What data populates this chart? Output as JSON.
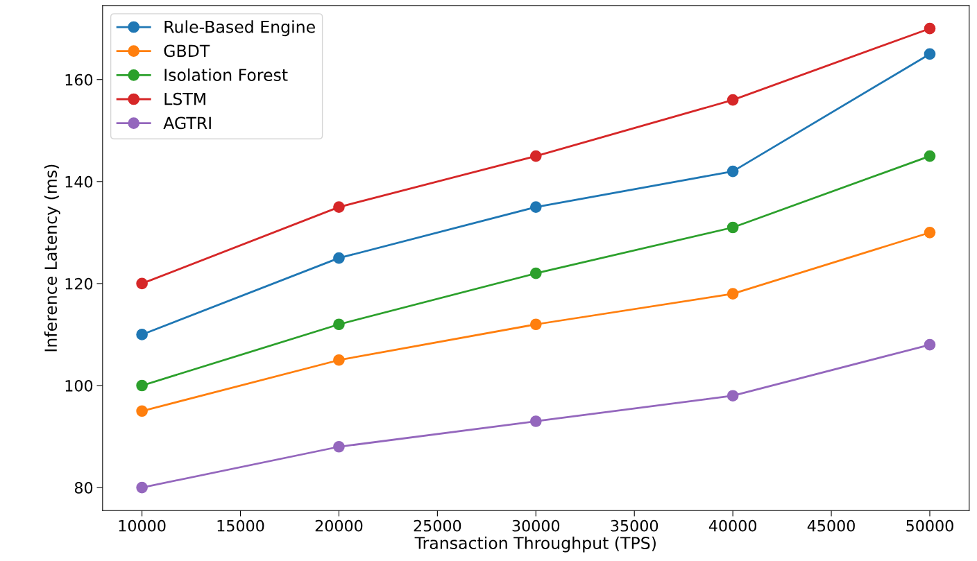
{
  "chart_data": {
    "type": "line",
    "xlabel": "Transaction Throughput (TPS)",
    "ylabel": "Inference Latency (ms)",
    "x": [
      10000,
      20000,
      30000,
      40000,
      50000
    ],
    "series": [
      {
        "name": "Rule-Based Engine",
        "color": "#1f77b4",
        "values": [
          110,
          125,
          135,
          142,
          165
        ]
      },
      {
        "name": "GBDT",
        "color": "#ff7f0e",
        "values": [
          95,
          105,
          112,
          118,
          130
        ]
      },
      {
        "name": "Isolation Forest",
        "color": "#2ca02c",
        "values": [
          100,
          112,
          122,
          131,
          145
        ]
      },
      {
        "name": "LSTM",
        "color": "#d62728",
        "values": [
          120,
          135,
          145,
          156,
          170
        ]
      },
      {
        "name": "AGTRI",
        "color": "#9467bd",
        "values": [
          80,
          88,
          93,
          98,
          108
        ]
      }
    ],
    "xlim": [
      8000,
      52000
    ],
    "ylim": [
      75.5,
      174.5
    ],
    "xticks": [
      10000,
      15000,
      20000,
      25000,
      30000,
      35000,
      40000,
      45000,
      50000
    ],
    "yticks": [
      80,
      100,
      120,
      140,
      160
    ],
    "marker": "circle",
    "line_style": "solid",
    "legend": "top left",
    "grid": false
  }
}
